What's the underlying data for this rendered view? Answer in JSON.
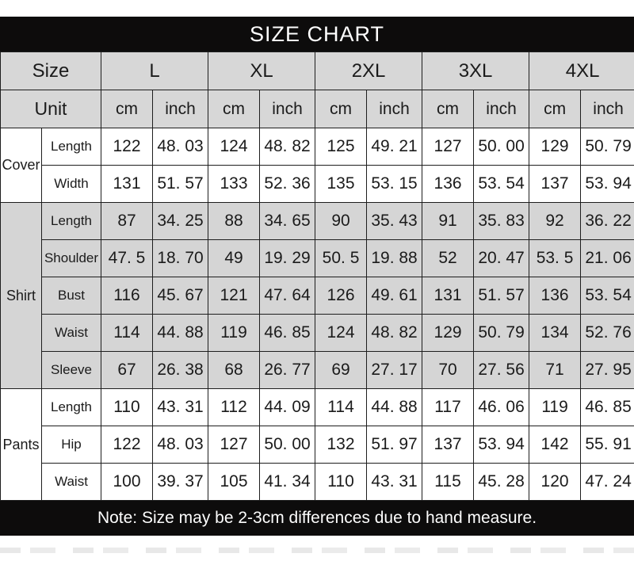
{
  "title": "SIZE CHART",
  "note": "Note: Size may be 2-3cm differences due to hand measure.",
  "colors": {
    "bar_background": "#0d0c0c",
    "bar_text": "#ffffff",
    "header_row_background": "#d7d7d7",
    "shaded_section_background": "#d5d5d5",
    "table_border": "#1e1e1e"
  },
  "chart_data": {
    "type": "table",
    "title": "SIZE CHART",
    "note": "Note: Size may be 2-3cm differences due to hand measure.",
    "size_header": "Size",
    "unit_header": "Unit",
    "sizes": [
      "L",
      "XL",
      "2XL",
      "3XL",
      "4XL"
    ],
    "units": [
      "cm",
      "inch"
    ],
    "sections": [
      {
        "category": "Cover",
        "rows": [
          {
            "label": "Length",
            "values": [
              "122",
              "48. 03",
              "124",
              "48. 82",
              "125",
              "49. 21",
              "127",
              "50. 00",
              "129",
              "50. 79"
            ]
          },
          {
            "label": "Width",
            "values": [
              "131",
              "51. 57",
              "133",
              "52. 36",
              "135",
              "53. 15",
              "136",
              "53. 54",
              "137",
              "53. 94"
            ]
          }
        ]
      },
      {
        "category": "Shirt",
        "rows": [
          {
            "label": "Length",
            "values": [
              "87",
              "34. 25",
              "88",
              "34. 65",
              "90",
              "35. 43",
              "91",
              "35. 83",
              "92",
              "36. 22"
            ]
          },
          {
            "label": "Shoulder",
            "values": [
              "47. 5",
              "18. 70",
              "49",
              "19. 29",
              "50. 5",
              "19. 88",
              "52",
              "20. 47",
              "53. 5",
              "21. 06"
            ]
          },
          {
            "label": "Bust",
            "values": [
              "116",
              "45. 67",
              "121",
              "47. 64",
              "126",
              "49. 61",
              "131",
              "51. 57",
              "136",
              "53. 54"
            ]
          },
          {
            "label": "Waist",
            "values": [
              "114",
              "44. 88",
              "119",
              "46. 85",
              "124",
              "48. 82",
              "129",
              "50. 79",
              "134",
              "52. 76"
            ]
          },
          {
            "label": "Sleeve",
            "values": [
              "67",
              "26. 38",
              "68",
              "26. 77",
              "69",
              "27. 17",
              "70",
              "27. 56",
              "71",
              "27. 95"
            ]
          }
        ]
      },
      {
        "category": "Pants",
        "rows": [
          {
            "label": "Length",
            "values": [
              "110",
              "43. 31",
              "112",
              "44. 09",
              "114",
              "44. 88",
              "117",
              "46. 06",
              "119",
              "46. 85"
            ]
          },
          {
            "label": "Hip",
            "values": [
              "122",
              "48. 03",
              "127",
              "50. 00",
              "132",
              "51. 97",
              "137",
              "53. 94",
              "142",
              "55. 91"
            ]
          },
          {
            "label": "Waist",
            "values": [
              "100",
              "39. 37",
              "105",
              "41. 34",
              "110",
              "43. 31",
              "115",
              "45. 28",
              "120",
              "47. 24"
            ]
          }
        ]
      }
    ]
  }
}
